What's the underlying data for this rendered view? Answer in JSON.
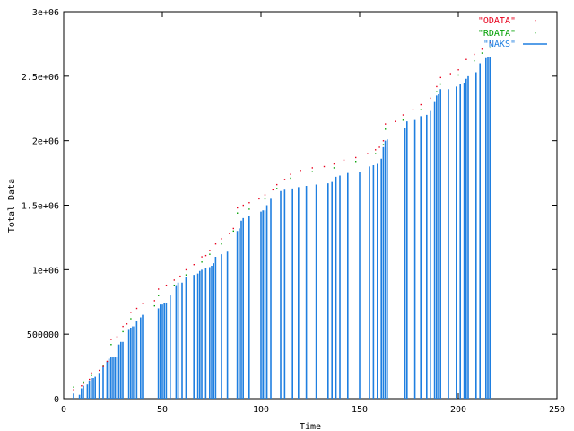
{
  "chart_data": {
    "type": "scatter",
    "title": "",
    "xlabel": "Time",
    "ylabel": "Total Data",
    "xlim": [
      0,
      250
    ],
    "ylim": [
      0,
      3000000
    ],
    "x_ticks": [
      {
        "value": 0,
        "label": "0"
      },
      {
        "value": 50,
        "label": "50"
      },
      {
        "value": 100,
        "label": "100"
      },
      {
        "value": 150,
        "label": "150"
      },
      {
        "value": 200,
        "label": "200"
      },
      {
        "value": 250,
        "label": "250"
      }
    ],
    "y_ticks": [
      {
        "value": 0,
        "label": "0"
      },
      {
        "value": 500000,
        "label": "500000"
      },
      {
        "value": 1000000,
        "label": "1e+06"
      },
      {
        "value": 1500000,
        "label": "1.5e+06"
      },
      {
        "value": 2000000,
        "label": "2e+06"
      },
      {
        "value": 2500000,
        "label": "2.5e+06"
      },
      {
        "value": 3000000,
        "label": "3e+06"
      }
    ],
    "legend_position": "top-right",
    "grid": false,
    "series": [
      {
        "name": "\"ODATA\"",
        "style": "dots",
        "color": "#e8001c",
        "points": [
          [
            5,
            70000
          ],
          [
            9,
            100000
          ],
          [
            10,
            120000
          ],
          [
            13,
            150000
          ],
          [
            14,
            200000
          ],
          [
            18,
            220000
          ],
          [
            20,
            250000
          ],
          [
            22,
            290000
          ],
          [
            24,
            460000
          ],
          [
            27,
            480000
          ],
          [
            30,
            560000
          ],
          [
            32,
            580000
          ],
          [
            34,
            670000
          ],
          [
            37,
            700000
          ],
          [
            40,
            740000
          ],
          [
            46,
            760000
          ],
          [
            48,
            850000
          ],
          [
            52,
            880000
          ],
          [
            56,
            920000
          ],
          [
            59,
            950000
          ],
          [
            62,
            1000000
          ],
          [
            66,
            1040000
          ],
          [
            70,
            1100000
          ],
          [
            72,
            1110000
          ],
          [
            74,
            1150000
          ],
          [
            77,
            1200000
          ],
          [
            80,
            1240000
          ],
          [
            84,
            1280000
          ],
          [
            86,
            1320000
          ],
          [
            88,
            1480000
          ],
          [
            91,
            1500000
          ],
          [
            94,
            1520000
          ],
          [
            99,
            1550000
          ],
          [
            102,
            1580000
          ],
          [
            106,
            1620000
          ],
          [
            108,
            1660000
          ],
          [
            112,
            1700000
          ],
          [
            115,
            1740000
          ],
          [
            120,
            1770000
          ],
          [
            126,
            1790000
          ],
          [
            132,
            1800000
          ],
          [
            137,
            1820000
          ],
          [
            142,
            1850000
          ],
          [
            148,
            1870000
          ],
          [
            154,
            1900000
          ],
          [
            158,
            1930000
          ],
          [
            160,
            1950000
          ],
          [
            162,
            2000000
          ],
          [
            163,
            2130000
          ],
          [
            168,
            2150000
          ],
          [
            172,
            2200000
          ],
          [
            177,
            2240000
          ],
          [
            181,
            2280000
          ],
          [
            186,
            2330000
          ],
          [
            189,
            2420000
          ],
          [
            191,
            2490000
          ],
          [
            196,
            2520000
          ],
          [
            200,
            2550000
          ],
          [
            204,
            2630000
          ],
          [
            208,
            2670000
          ],
          [
            212,
            2710000
          ],
          [
            216,
            2760000
          ]
        ]
      },
      {
        "name": "\"RDATA\"",
        "style": "dots",
        "color": "#00a000",
        "points": [
          [
            5,
            90000
          ],
          [
            10,
            130000
          ],
          [
            14,
            180000
          ],
          [
            20,
            260000
          ],
          [
            24,
            420000
          ],
          [
            30,
            520000
          ],
          [
            34,
            620000
          ],
          [
            46,
            720000
          ],
          [
            48,
            800000
          ],
          [
            56,
            880000
          ],
          [
            62,
            960000
          ],
          [
            70,
            1060000
          ],
          [
            74,
            1120000
          ],
          [
            80,
            1200000
          ],
          [
            86,
            1300000
          ],
          [
            88,
            1440000
          ],
          [
            94,
            1470000
          ],
          [
            102,
            1550000
          ],
          [
            108,
            1630000
          ],
          [
            115,
            1710000
          ],
          [
            126,
            1760000
          ],
          [
            137,
            1790000
          ],
          [
            148,
            1840000
          ],
          [
            158,
            1900000
          ],
          [
            162,
            1970000
          ],
          [
            163,
            2090000
          ],
          [
            172,
            2160000
          ],
          [
            181,
            2240000
          ],
          [
            189,
            2380000
          ],
          [
            191,
            2440000
          ],
          [
            200,
            2510000
          ],
          [
            208,
            2620000
          ],
          [
            212,
            2680000
          ],
          [
            216,
            2720000
          ]
        ]
      },
      {
        "name": "\"NAKS\"",
        "style": "impulses",
        "color": "#1f7fe0",
        "points": [
          [
            5,
            40000
          ],
          [
            8,
            30000
          ],
          [
            9,
            80000
          ],
          [
            10,
            100000
          ],
          [
            12,
            110000
          ],
          [
            13,
            140000
          ],
          [
            14,
            160000
          ],
          [
            15,
            160000
          ],
          [
            16,
            170000
          ],
          [
            18,
            200000
          ],
          [
            20,
            250000
          ],
          [
            22,
            290000
          ],
          [
            23,
            310000
          ],
          [
            24,
            320000
          ],
          [
            25,
            320000
          ],
          [
            26,
            320000
          ],
          [
            27,
            320000
          ],
          [
            28,
            420000
          ],
          [
            29,
            440000
          ],
          [
            30,
            440000
          ],
          [
            33,
            540000
          ],
          [
            34,
            550000
          ],
          [
            35,
            560000
          ],
          [
            36,
            560000
          ],
          [
            37,
            600000
          ],
          [
            39,
            630000
          ],
          [
            40,
            650000
          ],
          [
            48,
            700000
          ],
          [
            49,
            730000
          ],
          [
            50,
            730000
          ],
          [
            51,
            740000
          ],
          [
            52,
            740000
          ],
          [
            54,
            800000
          ],
          [
            57,
            880000
          ],
          [
            58,
            900000
          ],
          [
            60,
            900000
          ],
          [
            62,
            940000
          ],
          [
            66,
            960000
          ],
          [
            68,
            970000
          ],
          [
            69,
            990000
          ],
          [
            70,
            1000000
          ],
          [
            72,
            1010000
          ],
          [
            74,
            1020000
          ],
          [
            75,
            1030000
          ],
          [
            76,
            1050000
          ],
          [
            77,
            1100000
          ],
          [
            80,
            1120000
          ],
          [
            83,
            1140000
          ],
          [
            88,
            1300000
          ],
          [
            89,
            1320000
          ],
          [
            90,
            1380000
          ],
          [
            91,
            1400000
          ],
          [
            94,
            1420000
          ],
          [
            100,
            1450000
          ],
          [
            101,
            1460000
          ],
          [
            102,
            1460000
          ],
          [
            103,
            1500000
          ],
          [
            105,
            1550000
          ],
          [
            110,
            1610000
          ],
          [
            112,
            1620000
          ],
          [
            116,
            1630000
          ],
          [
            119,
            1640000
          ],
          [
            123,
            1650000
          ],
          [
            128,
            1660000
          ],
          [
            134,
            1670000
          ],
          [
            136,
            1680000
          ],
          [
            138,
            1720000
          ],
          [
            140,
            1730000
          ],
          [
            144,
            1750000
          ],
          [
            150,
            1760000
          ],
          [
            155,
            1800000
          ],
          [
            157,
            1810000
          ],
          [
            159,
            1820000
          ],
          [
            161,
            1860000
          ],
          [
            162,
            1950000
          ],
          [
            163,
            2000000
          ],
          [
            164,
            2010000
          ],
          [
            173,
            2100000
          ],
          [
            174,
            2150000
          ],
          [
            178,
            2160000
          ],
          [
            181,
            2190000
          ],
          [
            184,
            2200000
          ],
          [
            186,
            2230000
          ],
          [
            188,
            2300000
          ],
          [
            189,
            2350000
          ],
          [
            190,
            2360000
          ],
          [
            191,
            2400000
          ],
          [
            195,
            2400000
          ],
          [
            199,
            2420000
          ],
          [
            201,
            2440000
          ],
          [
            203,
            2450000
          ],
          [
            204,
            2480000
          ],
          [
            205,
            2500000
          ],
          [
            209,
            2530000
          ],
          [
            211,
            2600000
          ],
          [
            214,
            2640000
          ],
          [
            215,
            2650000
          ],
          [
            216,
            2650000
          ]
        ]
      }
    ]
  }
}
